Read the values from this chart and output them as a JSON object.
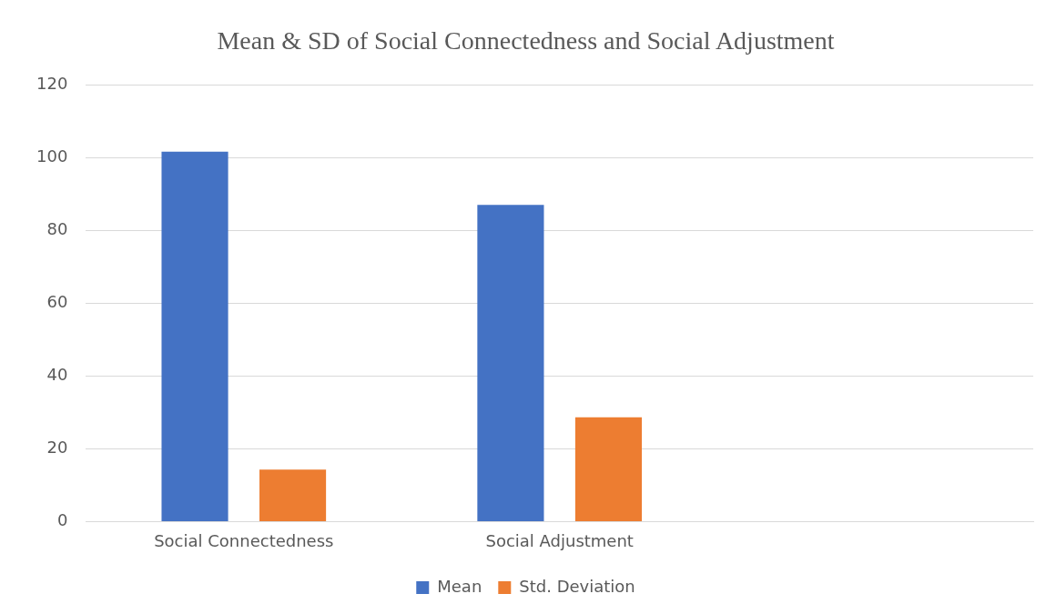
{
  "chart_data": {
    "type": "bar",
    "title": "Mean & SD of Social Connectedness and Social Adjustment",
    "categories": [
      "Social Connectedness",
      "Social Adjustment",
      null
    ],
    "series": [
      {
        "name": "Mean",
        "color": "#4472c4",
        "values": [
          101.7,
          87.1,
          null
        ]
      },
      {
        "name": "Std. Deviation",
        "color": "#ed7d31",
        "values": [
          14.3,
          28.7,
          null
        ]
      }
    ],
    "ylim": [
      0,
      120
    ],
    "yticks": [
      0,
      20,
      40,
      60,
      80,
      100,
      120
    ],
    "grid": "y",
    "legend": "bottom"
  }
}
